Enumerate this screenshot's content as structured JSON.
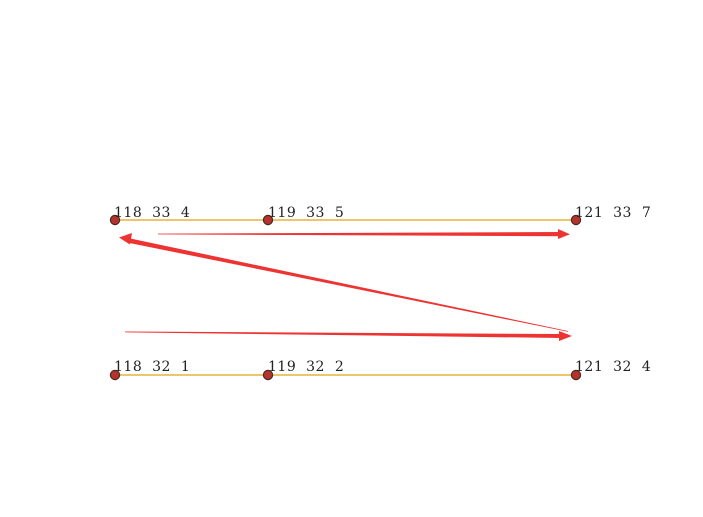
{
  "colors": {
    "background": "#ffffff",
    "connector": "#e8b23a",
    "node_fill": "#b5332c",
    "node_stroke": "#4a2a20",
    "arrow": "#ee3333"
  },
  "rows": [
    {
      "nodes": [
        {
          "label": "118  33  4"
        },
        {
          "label": "119  33  5"
        },
        {
          "label": "121  33  7"
        }
      ]
    },
    {
      "nodes": [
        {
          "label": "118  32  1"
        },
        {
          "label": "119  32  2"
        },
        {
          "label": "121  32  4"
        }
      ]
    }
  ],
  "arrows": [
    {
      "from": "top-row-start",
      "to": "top-row-end"
    },
    {
      "from": "bottom-row-end",
      "to": "top-row-start"
    },
    {
      "from": "bottom-row-start",
      "to": "bottom-row-end"
    }
  ]
}
